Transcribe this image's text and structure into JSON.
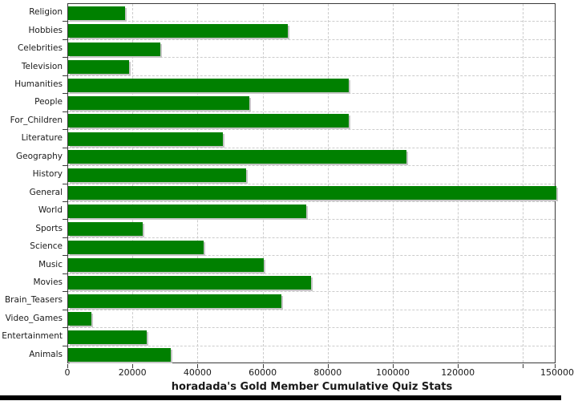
{
  "chart_data": {
    "type": "bar",
    "orientation": "horizontal",
    "title": "horadada's Gold Member Cumulative Quiz Stats",
    "categories": [
      "Religion",
      "Hobbies",
      "Celebrities",
      "Television",
      "Humanities",
      "People",
      "For_Children",
      "Literature",
      "Geography",
      "History",
      "General",
      "World",
      "Sports",
      "Science",
      "Music",
      "Movies",
      "Brain_Teasers",
      "Video_Games",
      "Entertainment",
      "Animals"
    ],
    "values": [
      17400,
      67400,
      28300,
      18700,
      86100,
      55700,
      86300,
      47500,
      103900,
      54700,
      150000,
      73100,
      23000,
      41600,
      60200,
      74700,
      65600,
      7200,
      24200,
      31500
    ],
    "xlim": [
      0,
      150000
    ],
    "xticks": [
      {
        "value": 0,
        "label": "0"
      },
      {
        "value": 20000,
        "label": "20000"
      },
      {
        "value": 40000,
        "label": "40000"
      },
      {
        "value": 60000,
        "label": "60000"
      },
      {
        "value": 80000,
        "label": "80000"
      },
      {
        "value": 100000,
        "label": "100000"
      },
      {
        "value": 120000,
        "label": "120000"
      },
      {
        "value": 140000,
        "label": ""
      },
      {
        "value": 150000,
        "label": "150000"
      }
    ],
    "grid": true,
    "legend": false,
    "colors": {
      "bar_fill": "#008000",
      "bar_shadow": "#c6c6c6",
      "grid_line": "#cccccc",
      "axis_border": "#3a3a3a",
      "text": "#1a1a1a",
      "bottom_strip": "#000000"
    }
  }
}
